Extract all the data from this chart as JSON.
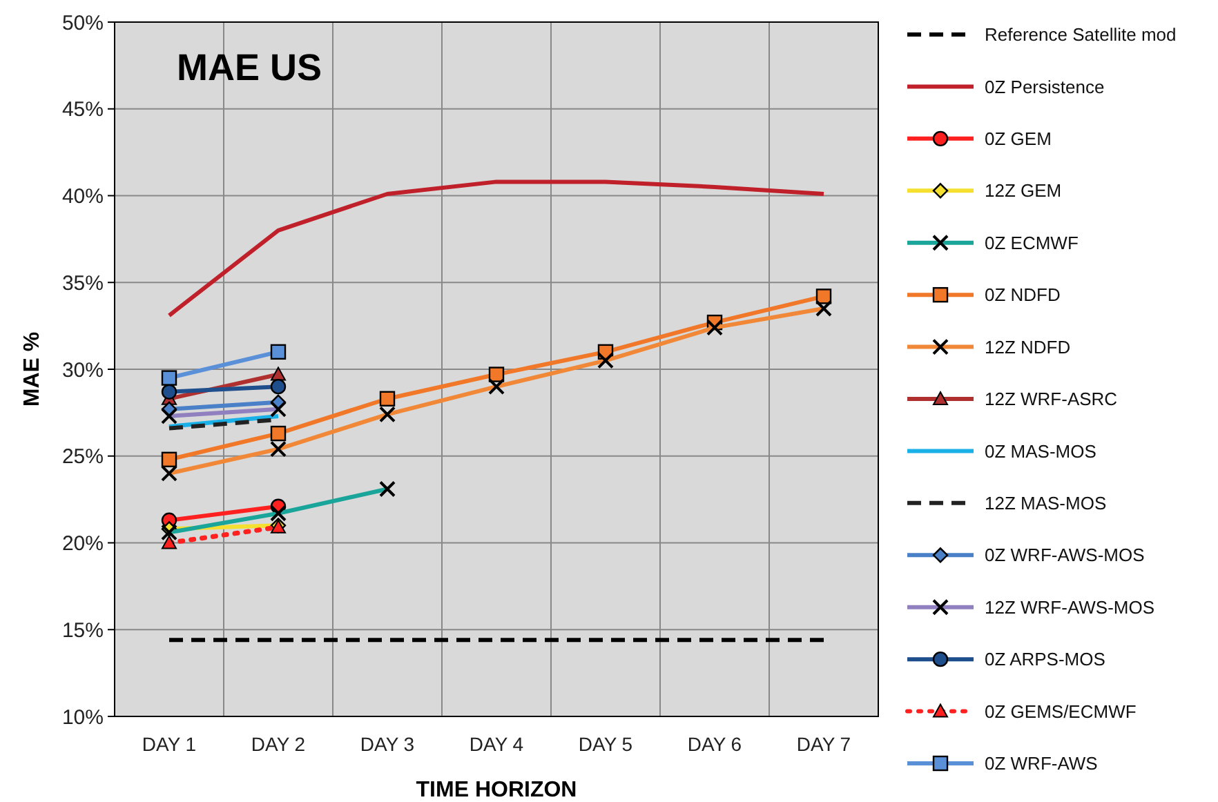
{
  "chart_data": {
    "type": "line",
    "title": "MAE US",
    "xlabel": "TIME HORIZON",
    "ylabel": "MAE %",
    "categories": [
      "DAY 1",
      "DAY 2",
      "DAY 3",
      "DAY 4",
      "DAY 5",
      "DAY 6",
      "DAY 7"
    ],
    "ylim": [
      10,
      50
    ],
    "yticks": [
      {
        "value": 10,
        "label": "10%"
      },
      {
        "value": 15,
        "label": "15%"
      },
      {
        "value": 20,
        "label": "20%"
      },
      {
        "value": 25,
        "label": "25%"
      },
      {
        "value": 30,
        "label": "30%"
      },
      {
        "value": 35,
        "label": "35%"
      },
      {
        "value": 40,
        "label": "40%"
      },
      {
        "value": 45,
        "label": "45%"
      },
      {
        "value": 50,
        "label": "50%"
      }
    ],
    "grid": true,
    "legend": "right",
    "series": [
      {
        "name": "Reference Satellite mod",
        "color": "#000000",
        "line_style": "dashed",
        "marker": "none",
        "values": [
          14.4,
          14.4,
          14.4,
          14.4,
          14.4,
          14.4,
          14.4
        ]
      },
      {
        "name": "0Z  Persistence",
        "color": "#c0202a",
        "marker": "none",
        "values": [
          33.1,
          38.0,
          40.1,
          40.8,
          40.8,
          40.5,
          40.1
        ]
      },
      {
        "name": "0Z  GEM",
        "color": "#ff2020",
        "marker": "circle",
        "values": [
          21.3,
          22.1,
          null,
          null,
          null,
          null,
          null
        ]
      },
      {
        "name": "12Z  GEM",
        "color": "#f5e030",
        "marker": "diamond",
        "values": [
          20.8,
          21.0,
          null,
          null,
          null,
          null,
          null
        ]
      },
      {
        "name": "0Z  ECMWF",
        "color": "#1aa59a",
        "marker": "cross",
        "values": [
          20.6,
          21.7,
          23.1,
          null,
          null,
          null,
          null
        ]
      },
      {
        "name": "0Z  NDFD",
        "color": "#f07828",
        "marker": "square",
        "values": [
          24.8,
          26.3,
          28.3,
          29.7,
          31.0,
          32.7,
          34.2
        ]
      },
      {
        "name": "12Z  NDFD",
        "color": "#f08838",
        "marker": "cross",
        "values": [
          24.0,
          25.4,
          27.4,
          29.0,
          30.5,
          32.4,
          33.5
        ]
      },
      {
        "name": "12Z  WRF-ASRC",
        "color": "#b03030",
        "marker": "triangle",
        "values": [
          28.3,
          29.7,
          null,
          null,
          null,
          null,
          null
        ]
      },
      {
        "name": "0Z  MAS-MOS",
        "color": "#1ab0e8",
        "marker": "none",
        "values": [
          26.7,
          27.3,
          null,
          null,
          null,
          null,
          null
        ]
      },
      {
        "name": "12Z  MAS-MOS",
        "color": "#222222",
        "line_style": "dashed",
        "marker": "none",
        "values": [
          26.6,
          27.1,
          null,
          null,
          null,
          null,
          null
        ]
      },
      {
        "name": "0Z  WRF-AWS-MOS",
        "color": "#4a80c8",
        "marker": "diamond",
        "values": [
          27.7,
          28.1,
          null,
          null,
          null,
          null,
          null
        ]
      },
      {
        "name": "12Z  WRF-AWS-MOS",
        "color": "#9080c0",
        "marker": "cross",
        "values": [
          27.3,
          27.7,
          null,
          null,
          null,
          null,
          null
        ]
      },
      {
        "name": "0Z  ARPS-MOS",
        "color": "#1f4e8c",
        "marker": "circle",
        "values": [
          28.7,
          29.0,
          null,
          null,
          null,
          null,
          null
        ]
      },
      {
        "name": "0Z  GEMS/ECMWF",
        "color": "#ff2020",
        "line_style": "dotted",
        "marker": "triangle",
        "values": [
          20.0,
          20.9,
          null,
          null,
          null,
          null,
          null
        ]
      },
      {
        "name": "0Z  WRF-AWS",
        "color": "#5a90d8",
        "marker": "square",
        "values": [
          29.5,
          31.0,
          null,
          null,
          null,
          null,
          null
        ]
      }
    ]
  }
}
